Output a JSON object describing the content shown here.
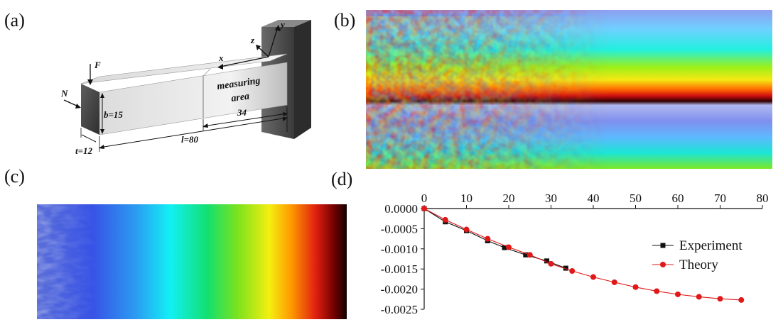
{
  "panels": {
    "a": "(a)",
    "b": "(b)",
    "c": "(c)",
    "d": "(d)"
  },
  "diagram": {
    "force_label": "F",
    "normal_label": "N",
    "x_label": "x",
    "y_label": "y",
    "z_label": "z",
    "measuring_line1": "measuring",
    "measuring_line2": "area",
    "b_label": "b=15",
    "t_label": "t=12",
    "l_label": "l=80",
    "len34_label": "34"
  },
  "colors": {
    "experiment": "#111111",
    "theory": "#e01818",
    "beam_face": "#e6e6e6",
    "support": "#4a4a4a"
  },
  "chart_data": {
    "type": "line",
    "x_axis_position": "top",
    "xlim": [
      0,
      80
    ],
    "ylim": [
      -0.0025,
      0
    ],
    "x_ticks": [
      0,
      10,
      20,
      30,
      40,
      50,
      60,
      70,
      80
    ],
    "y_ticks": [
      0.0,
      -0.0005,
      -0.001,
      -0.0015,
      -0.002,
      -0.0025
    ],
    "y_tick_labels": [
      "0.0000",
      "-0.0005",
      "-0.0010",
      "-0.0015",
      "-0.0020",
      "-0.0025"
    ],
    "legend_position": "right",
    "series": [
      {
        "name": "Experiment",
        "marker": "square",
        "color": "#111111",
        "x": [
          0,
          5,
          10,
          15,
          19,
          24,
          29,
          33.5
        ],
        "y": [
          0.0,
          -0.00033,
          -0.00055,
          -0.0008,
          -0.00097,
          -0.00115,
          -0.0013,
          -0.00148
        ]
      },
      {
        "name": "Theory",
        "marker": "circle",
        "color": "#e01818",
        "x": [
          0,
          5,
          10,
          15,
          20,
          25,
          30,
          35,
          40,
          45,
          50,
          55,
          60,
          65,
          70,
          75
        ],
        "y": [
          0.0,
          -0.00028,
          -0.00052,
          -0.00075,
          -0.00096,
          -0.00115,
          -0.00137,
          -0.00155,
          -0.0017,
          -0.00183,
          -0.00195,
          -0.00205,
          -0.00213,
          -0.00219,
          -0.00224,
          -0.00227
        ]
      }
    ]
  }
}
